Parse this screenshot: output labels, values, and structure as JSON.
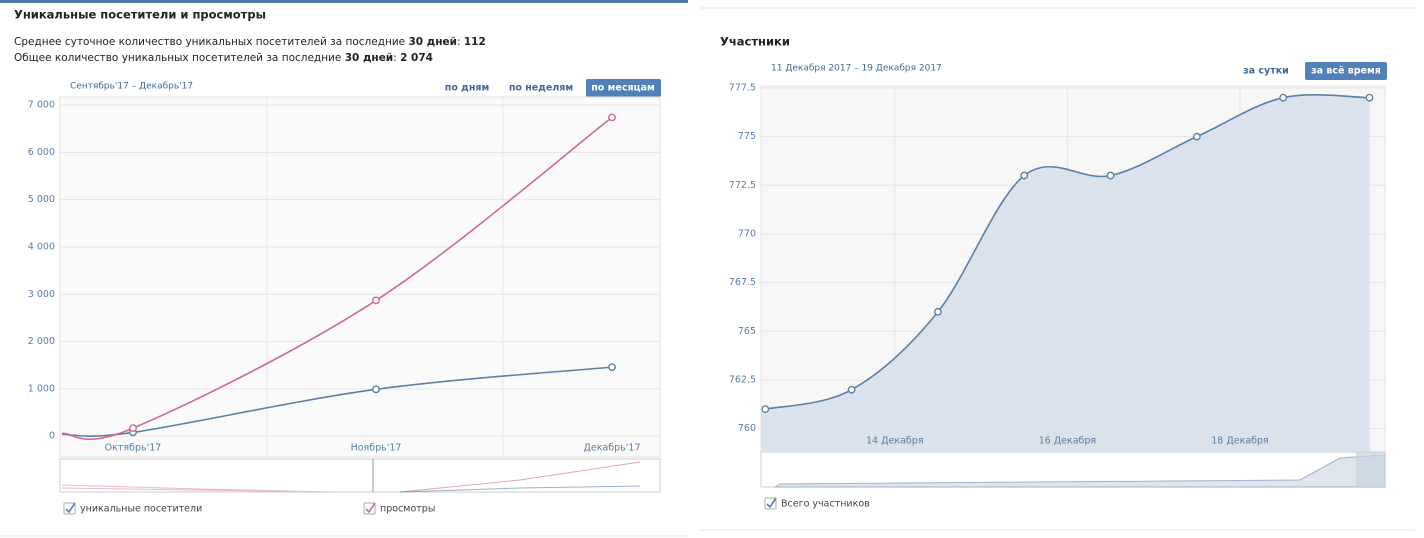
{
  "left": {
    "title": "Уникальные посетители и просмотры",
    "summary": [
      {
        "text": "Среднее суточное количество уникальных посетителей за последние ",
        "bold": "30 дней",
        "sep": ": ",
        "value": "112"
      },
      {
        "text": "Общее количество уникальных посетителей за последние ",
        "bold": "30 дней",
        "sep": ": ",
        "value": "2 074"
      }
    ],
    "period": "Сентябрь'17 – Декабрь'17",
    "buttons": [
      "по дням",
      "по неделям",
      "по месяцам"
    ]
  },
  "right": {
    "title": "Участники",
    "period": "11 Декабря 2017 – 19 Декабря 2017",
    "buttons": [
      "за сутки",
      "за всё время"
    ]
  },
  "chart_data": [
    {
      "type": "line",
      "categories": [
        null,
        "Октябрь'17",
        "Ноябрь'17",
        "Декабрь'17"
      ],
      "series": [
        {
          "name": "уникальные посетители",
          "color": "#5b7fa6",
          "values": [
            40,
            80,
            990,
            1460
          ]
        },
        {
          "name": "просмотры",
          "color": "#d0688f",
          "values": [
            60,
            170,
            2870,
            6740
          ]
        }
      ],
      "ylim": [
        -440,
        7170
      ],
      "yticks": [
        0,
        {
          "value": 1000,
          "label": "1 000"
        },
        {
          "value": 2000,
          "label": "2 000"
        },
        {
          "value": 3000,
          "label": "3 000"
        },
        {
          "value": 4000,
          "label": "4 000"
        },
        {
          "value": 5000,
          "label": "5 000"
        },
        {
          "value": 6000,
          "label": "6 000"
        },
        {
          "value": 7000,
          "label": "7 000"
        }
      ],
      "grid": true
    },
    {
      "type": "area",
      "x": [
        12.5,
        13.5,
        14.5,
        15.5,
        16.5,
        17.5,
        18.5,
        19.5
      ],
      "series": [
        {
          "name": "Всего участников",
          "color": "#5b7fa6",
          "values": [
            761,
            762,
            766,
            773,
            773,
            775,
            777,
            777
          ]
        }
      ],
      "xlim": [
        12.45,
        19.68
      ],
      "xticks": [
        {
          "value": 14,
          "label": "14 Декабря"
        },
        {
          "value": 16,
          "label": "16 Декабря"
        },
        {
          "value": 18,
          "label": "18 Декабря"
        }
      ],
      "ylim": [
        758.8,
        777.6
      ],
      "yticks": [
        760,
        762.5,
        765,
        767.5,
        770,
        772.5,
        775,
        777.5
      ],
      "grid": true
    }
  ]
}
